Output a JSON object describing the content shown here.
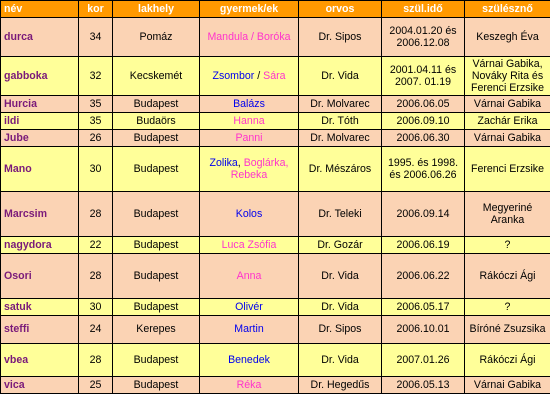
{
  "headers": {
    "name": "név",
    "age": "kor",
    "town": "lakhely",
    "kids": "gyermek/ek",
    "doctor": "orvos",
    "birthdate": "szül.idő",
    "midwife": "szülésznő"
  },
  "rows": [
    {
      "name": "durca",
      "age": "34",
      "town": "Pomáz",
      "kids": [
        {
          "text": "Mandula / Boróka",
          "sex": "girl"
        }
      ],
      "doctor": "Dr. Sipos",
      "date": "2004.01.20 és 2006.12.08",
      "midwife": "Keszegh Éva"
    },
    {
      "name": "gabboka",
      "age": "32",
      "town": "Kecskemét",
      "kids": [
        {
          "text": "Zsombor",
          "sex": "boy"
        },
        {
          "text": " / ",
          "sex": "sep"
        },
        {
          "text": "Sára",
          "sex": "girl"
        }
      ],
      "doctor": "Dr. Vida",
      "date": "2001.04.11 és 2007. 01.19",
      "midwife": "Várnai Gabika, Nováky Rita és Ferenci Erzsike"
    },
    {
      "name": "Hurcia",
      "age": "35",
      "town": "Budapest",
      "kids": [
        {
          "text": "Balázs",
          "sex": "boy"
        }
      ],
      "doctor": "Dr. Molvarec",
      "date": "2006.06.05",
      "midwife": "Várnai Gabika"
    },
    {
      "name": "ildi",
      "age": "35",
      "town": "Budaörs",
      "kids": [
        {
          "text": "Hanna",
          "sex": "girl"
        }
      ],
      "doctor": "Dr. Tóth",
      "date": "2006.09.10",
      "midwife": "Zachár Erika"
    },
    {
      "name": "Jube",
      "age": "26",
      "town": "Budapest",
      "kids": [
        {
          "text": "Panni",
          "sex": "girl"
        }
      ],
      "doctor": "Dr. Molvarec",
      "date": "2006.06.30",
      "midwife": "Várnai Gabika"
    },
    {
      "name": "Mano",
      "age": "30",
      "town": "Budapest",
      "kids": [
        {
          "text": "Zolika",
          "sex": "boy"
        },
        {
          "text": ", ",
          "sex": "sep"
        },
        {
          "text": "Boglárka, Rebeka",
          "sex": "girl"
        }
      ],
      "doctor": "Dr. Mészáros",
      "date": "1995. és 1998. és 2006.06.26",
      "midwife": "Ferenci Erzsike"
    },
    {
      "name": "Marcsim",
      "age": "28",
      "town": "Budapest",
      "kids": [
        {
          "text": "Kolos",
          "sex": "boy"
        }
      ],
      "doctor": "Dr. Teleki",
      "date": "2006.09.14",
      "midwife": "Megyeriné Aranka"
    },
    {
      "name": "nagydora",
      "age": "22",
      "town": "Budapest",
      "kids": [
        {
          "text": "Luca Zsófia",
          "sex": "girl"
        }
      ],
      "doctor": "Dr. Gozár",
      "date": "2006.06.19",
      "midwife": "?"
    },
    {
      "name": "Osori",
      "age": "28",
      "town": "Budapest",
      "kids": [
        {
          "text": "Anna",
          "sex": "girl"
        }
      ],
      "doctor": "Dr. Vida",
      "date": "2006.06.22",
      "midwife": "Rákóczi Ági"
    },
    {
      "name": "satuk",
      "age": "30",
      "town": "Budapest",
      "kids": [
        {
          "text": "Olivér",
          "sex": "boy"
        }
      ],
      "doctor": "Dr. Vida",
      "date": "2006.05.17",
      "midwife": "?"
    },
    {
      "name": "steffi",
      "age": "24",
      "town": "Kerepes",
      "kids": [
        {
          "text": "Martin",
          "sex": "boy"
        }
      ],
      "doctor": "Dr. Sipos",
      "date": "2006.10.01",
      "midwife": "Bíróné Zsuzsika"
    },
    {
      "name": "vbea",
      "age": "28",
      "town": "Budapest",
      "kids": [
        {
          "text": "Benedek",
          "sex": "boy"
        }
      ],
      "doctor": "Dr. Vida",
      "date": "2007.01.26",
      "midwife": "Rákóczi Ági"
    },
    {
      "name": "vica",
      "age": "25",
      "town": "Budapest",
      "kids": [
        {
          "text": "Réka",
          "sex": "girl"
        }
      ],
      "doctor": "Dr. Hegedűs",
      "date": "2006.05.13",
      "midwife": "Várnai Gabika"
    }
  ],
  "colors": {
    "header_bg": "#ff9900",
    "row_peach": "#fbd3b4",
    "row_yellow": "#ffff99",
    "name_text": "#7a1a7a",
    "girl_text": "#ff33cc",
    "boy_text": "#0000ee"
  }
}
